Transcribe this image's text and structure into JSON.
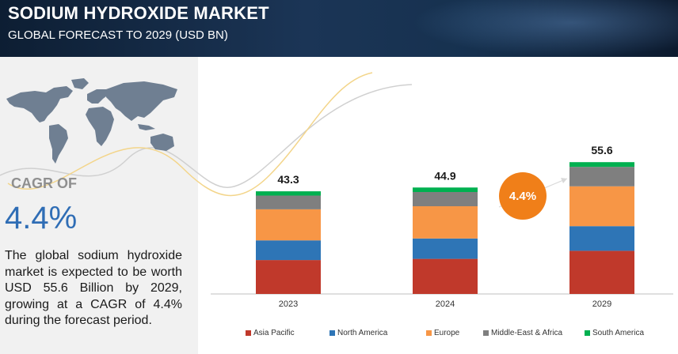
{
  "header": {
    "title": "SODIUM HYDROXIDE MARKET",
    "subtitle": "GLOBAL FORECAST TO 2029 (USD BN)"
  },
  "left_panel": {
    "cagr_label": "CAGR OF",
    "cagr_value": "4.4%",
    "description": "The global sodium hydroxide market is expected to be worth USD 55.6 Billion by 2029, growing at a CAGR of 4.4% during the forecast period.",
    "map_icon": "world-map-icon"
  },
  "cagr_bubble": {
    "text": "4.4%"
  },
  "colors": {
    "asia_pacific": "#c0392b",
    "north_america": "#2e75b6",
    "europe": "#f79646",
    "middle_east_africa": "#7f7f7f",
    "south_america": "#00b050",
    "cagr_accent": "#f07f19",
    "cagr_text": "#2f6db5"
  },
  "chart_data": {
    "type": "bar",
    "stacked": true,
    "categories": [
      "2023",
      "2024",
      "2029"
    ],
    "totals": [
      "43.3",
      "44.9",
      "55.6"
    ],
    "series": [
      {
        "name": "Asia Pacific",
        "color": "#c0392b",
        "values": [
          14.3,
          14.8,
          18.2
        ]
      },
      {
        "name": "North America",
        "color": "#2e75b6",
        "values": [
          8.3,
          8.6,
          10.4
        ]
      },
      {
        "name": "Europe",
        "color": "#f79646",
        "values": [
          13.1,
          13.6,
          16.8
        ]
      },
      {
        "name": "Middle-East & Africa",
        "color": "#7f7f7f",
        "values": [
          5.8,
          6.0,
          8.2
        ]
      },
      {
        "name": "South America",
        "color": "#00b050",
        "values": [
          1.8,
          1.9,
          2.0
        ]
      }
    ],
    "legend_position": "bottom",
    "grid": false
  }
}
